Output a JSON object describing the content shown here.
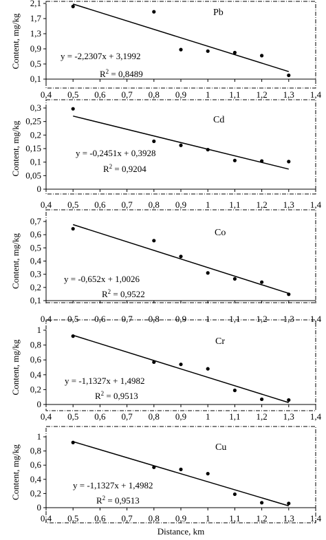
{
  "chart_data": [
    {
      "type": "scatter",
      "label": "Pb",
      "ylabel": "Content, mg/kg",
      "xlim": [
        0.4,
        1.4
      ],
      "ylim": [
        0.1,
        2.1
      ],
      "x_ticks": [
        "0,4",
        "0,5",
        "0,6",
        "0,7",
        "0,8",
        "0,9",
        "1",
        "1,1",
        "1,2",
        "1,3",
        "1,4"
      ],
      "y_ticks": [
        "0,1",
        "0,5",
        "0,9",
        "1,3",
        "1,7",
        "2,1"
      ],
      "y_tick_values": [
        0.1,
        0.5,
        0.9,
        1.3,
        1.7,
        2.1
      ],
      "points": [
        {
          "x": 0.5,
          "y": 2.02
        },
        {
          "x": 0.8,
          "y": 1.88
        },
        {
          "x": 0.9,
          "y": 0.88
        },
        {
          "x": 1.0,
          "y": 0.84
        },
        {
          "x": 1.1,
          "y": 0.8
        },
        {
          "x": 1.2,
          "y": 0.72
        },
        {
          "x": 1.3,
          "y": 0.2
        }
      ],
      "trendline": {
        "slope": -2.2307,
        "intercept": 3.1992
      },
      "equation": "y = -2,2307x + 3,1992",
      "r2_prefix": "R",
      "r2_value": " = 0,8489"
    },
    {
      "type": "scatter",
      "label": "Cd",
      "ylabel": "Content, mg/kg",
      "xlim": [
        0.4,
        1.4
      ],
      "ylim": [
        0,
        0.3
      ],
      "x_ticks": [
        "0,4",
        "0,5",
        "0,6",
        "0,7",
        "0,8",
        "0,9",
        "1",
        "1,1",
        "1,2",
        "1,3",
        "1,4"
      ],
      "y_ticks": [
        "0",
        "0,05",
        "0,1",
        "0,15",
        "0,2",
        "0,25",
        "0,3"
      ],
      "y_tick_values": [
        0,
        0.05,
        0.1,
        0.15,
        0.2,
        0.25,
        0.3
      ],
      "points": [
        {
          "x": 0.5,
          "y": 0.297
        },
        {
          "x": 0.8,
          "y": 0.177
        },
        {
          "x": 0.9,
          "y": 0.162
        },
        {
          "x": 1.0,
          "y": 0.146
        },
        {
          "x": 1.1,
          "y": 0.106
        },
        {
          "x": 1.2,
          "y": 0.104
        },
        {
          "x": 1.3,
          "y": 0.102
        }
      ],
      "trendline": {
        "slope": -0.2451,
        "intercept": 0.3928
      },
      "equation": "y = -0,2451x + 0,3928",
      "r2_prefix": "R",
      "r2_value": " = 0,9204"
    },
    {
      "type": "scatter",
      "label": "Co",
      "ylabel": "Content, mg/kg",
      "xlim": [
        0.4,
        1.4
      ],
      "ylim": [
        0.1,
        0.7
      ],
      "x_ticks": [
        "0,4",
        "0,5",
        "0,6",
        "0,7",
        "0,8",
        "0,9",
        "1",
        "1,1",
        "1,2",
        "1,3",
        "1,4"
      ],
      "y_ticks": [
        "0,1",
        "0,2",
        "0,3",
        "0,4",
        "0,5",
        "0,6",
        "0,7"
      ],
      "y_tick_values": [
        0.1,
        0.2,
        0.3,
        0.4,
        0.5,
        0.6,
        0.7
      ],
      "points": [
        {
          "x": 0.5,
          "y": 0.645
        },
        {
          "x": 0.8,
          "y": 0.555
        },
        {
          "x": 0.9,
          "y": 0.435
        },
        {
          "x": 1.0,
          "y": 0.31
        },
        {
          "x": 1.1,
          "y": 0.265
        },
        {
          "x": 1.2,
          "y": 0.24
        },
        {
          "x": 1.3,
          "y": 0.148
        }
      ],
      "trendline": {
        "slope": -0.652,
        "intercept": 1.0026
      },
      "equation": "y = -0,652x + 1,0026",
      "r2_prefix": "R",
      "r2_value": " = 0,9522"
    },
    {
      "type": "scatter",
      "label": "Cr",
      "ylabel": "Content, mg/kg",
      "xlim": [
        0.4,
        1.4
      ],
      "ylim": [
        0,
        1
      ],
      "x_ticks": [
        "0,4",
        "0,5",
        "0,6",
        "0,7",
        "0,8",
        "0,9",
        "1",
        "1,1",
        "1,2",
        "1,3",
        "1,4"
      ],
      "y_ticks": [
        "0",
        "0,2",
        "0,4",
        "0,6",
        "0,8",
        "1"
      ],
      "y_tick_values": [
        0,
        0.2,
        0.4,
        0.6,
        0.8,
        1
      ],
      "points": [
        {
          "x": 0.5,
          "y": 0.92
        },
        {
          "x": 0.8,
          "y": 0.57
        },
        {
          "x": 0.9,
          "y": 0.54
        },
        {
          "x": 1.0,
          "y": 0.48
        },
        {
          "x": 1.1,
          "y": 0.19
        },
        {
          "x": 1.2,
          "y": 0.07
        },
        {
          "x": 1.3,
          "y": 0.06
        }
      ],
      "trendline": {
        "slope": -1.1327,
        "intercept": 1.4982
      },
      "equation": "y = -1,1327x + 1,4982",
      "r2_prefix": "R",
      "r2_value": " = 0,9513"
    },
    {
      "type": "scatter",
      "label": "Cu",
      "ylabel": "Content, mg/kg",
      "xlabel": "Distance, km",
      "xlim": [
        0.4,
        1.4
      ],
      "ylim": [
        0,
        1
      ],
      "x_ticks": [
        "0,4",
        "0,5",
        "0,6",
        "0,7",
        "0,8",
        "0,9",
        "1",
        "1,1",
        "1,2",
        "1,3",
        "1,4"
      ],
      "y_ticks": [
        "0",
        "0,2",
        "0,4",
        "0,6",
        "0,8",
        "1"
      ],
      "y_tick_values": [
        0,
        0.2,
        0.4,
        0.6,
        0.8,
        1
      ],
      "points": [
        {
          "x": 0.5,
          "y": 0.92
        },
        {
          "x": 0.8,
          "y": 0.57
        },
        {
          "x": 0.9,
          "y": 0.54
        },
        {
          "x": 1.0,
          "y": 0.48
        },
        {
          "x": 1.1,
          "y": 0.19
        },
        {
          "x": 1.2,
          "y": 0.07
        },
        {
          "x": 1.3,
          "y": 0.06
        }
      ],
      "trendline": {
        "slope": -1.1327,
        "intercept": 1.4982
      },
      "equation": "y = -1,1327x + 1,4982",
      "r2_prefix": "R",
      "r2_value": " = 0,9513"
    }
  ]
}
